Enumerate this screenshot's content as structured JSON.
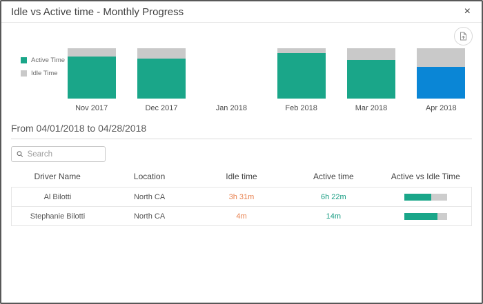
{
  "dialog": {
    "title": "Idle vs Active time - Monthly Progress",
    "close_glyph": "×"
  },
  "icons": {
    "close": "close-icon",
    "export": "export-image-icon",
    "search": "search-icon"
  },
  "colors": {
    "active": "#1aa689",
    "idle": "#c9c9c9",
    "highlight": "#0a86d6",
    "idle_text": "#e8804e",
    "active_text": "#169c82",
    "progress_track": "#cdcdcd"
  },
  "chart_data": {
    "type": "bar",
    "stacked": true,
    "categories": [
      "Nov 2017",
      "Dec 2017",
      "Jan 2018",
      "Feb 2018",
      "Mar 2018",
      "Apr 2018"
    ],
    "series": [
      {
        "name": "Active Time",
        "color": "#1aa689",
        "values": [
          83,
          80,
          0,
          90,
          77,
          63
        ]
      },
      {
        "name": "Idle Time",
        "color": "#c9c9c9",
        "values": [
          17,
          20,
          0,
          10,
          23,
          37
        ]
      }
    ],
    "unit": "percent-of-month (estimated)",
    "ylim": [
      0,
      100
    ],
    "grid": false,
    "legend_position": "left",
    "highlighted_category": "Apr 2018",
    "highlight_color": "#0a86d6"
  },
  "legend": {
    "items": [
      {
        "label": "Active Time",
        "color": "#1aa689"
      },
      {
        "label": "Idle Time",
        "color": "#c9c9c9"
      }
    ]
  },
  "date_range": {
    "text": "From 04/01/2018 to 04/28/2018"
  },
  "search": {
    "placeholder": "Search"
  },
  "table": {
    "columns": [
      "Driver Name",
      "Location",
      "Idle time",
      "Active time",
      "Active vs Idle Time"
    ],
    "rows": [
      {
        "driver_name": "Al Bilotti",
        "location": "North CA",
        "idle_time": "3h 31m",
        "active_time": "6h 22m",
        "active_pct": 64
      },
      {
        "driver_name": "Stephanie Bilotti",
        "location": "North CA",
        "idle_time": "4m",
        "active_time": "14m",
        "active_pct": 78
      }
    ]
  }
}
